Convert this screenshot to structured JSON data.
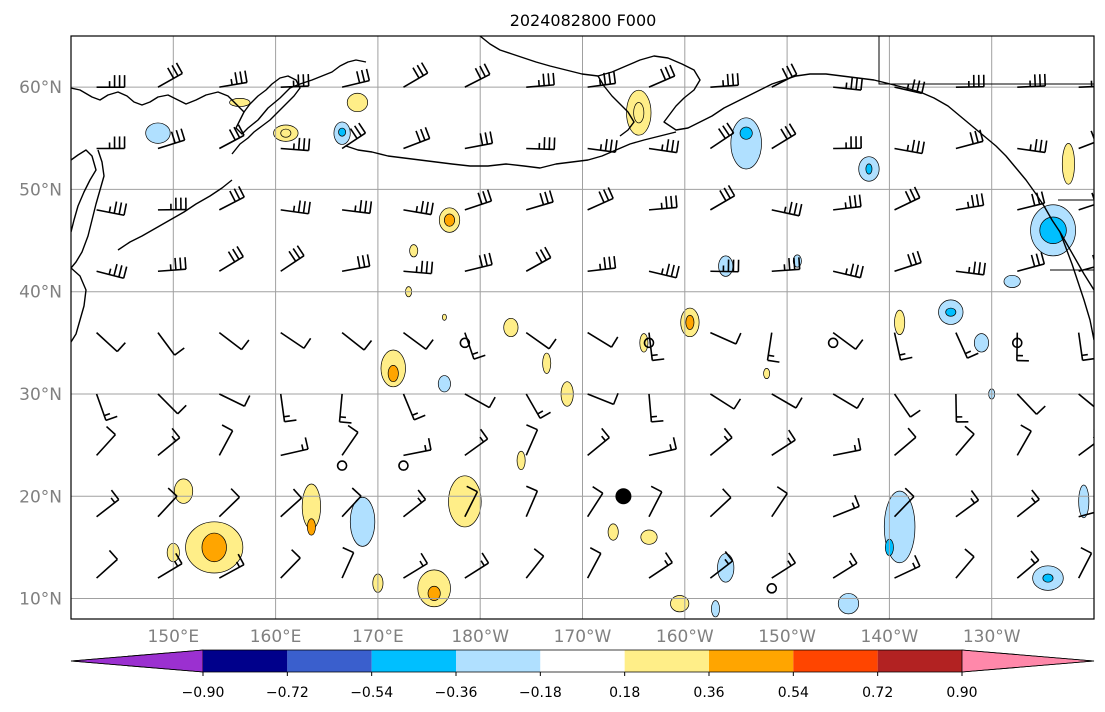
{
  "title": "2024082800 F000",
  "colors": {
    "background": "#ffffff",
    "frame": "#000000",
    "grid": "#a0a0a0",
    "coast": "#000000",
    "barb": "#000000",
    "tick_label": "#808080"
  },
  "map": {
    "projection": "PlateCarree",
    "lon_range_east": [
      140,
      240
    ],
    "lat_range": [
      8,
      65
    ],
    "grid_lines": true,
    "lon_ticks": [
      {
        "lon": 150,
        "label": "150°E"
      },
      {
        "lon": 160,
        "label": "160°E"
      },
      {
        "lon": 170,
        "label": "170°E"
      },
      {
        "lon": 180,
        "label": "180°W"
      },
      {
        "lon": 190,
        "label": "170°W"
      },
      {
        "lon": 200,
        "label": "160°W"
      },
      {
        "lon": 210,
        "label": "150°W"
      },
      {
        "lon": 220,
        "label": "140°W"
      },
      {
        "lon": 230,
        "label": "130°W"
      }
    ],
    "lat_ticks": [
      {
        "lat": 60,
        "label": "60°N"
      },
      {
        "lat": 50,
        "label": "50°N"
      },
      {
        "lat": 40,
        "label": "40°N"
      },
      {
        "lat": 30,
        "label": "30°N"
      },
      {
        "lat": 20,
        "label": "20°N"
      },
      {
        "lat": 10,
        "label": "10°N"
      }
    ]
  },
  "colorbar": {
    "extend": "both",
    "under_color": "#9b30d0",
    "over_color": "#ff88aa",
    "bins": [
      {
        "color": "#00008b"
      },
      {
        "color": "#3a5fcd"
      },
      {
        "color": "#00bfff"
      },
      {
        "color": "#b0e0ff"
      },
      {
        "color": "#ffffff"
      },
      {
        "color": "#ffee88"
      },
      {
        "color": "#ffa500"
      },
      {
        "color": "#ff4500"
      },
      {
        "color": "#b22222"
      }
    ],
    "tick_labels": [
      "−0.90",
      "−0.72",
      "−0.54",
      "−0.36",
      "−0.18",
      "0.18",
      "0.36",
      "0.54",
      "0.72",
      "0.90"
    ]
  },
  "contours": [
    {
      "lon": 148.5,
      "lat": 55.5,
      "rx": 1.2,
      "ry": 1.0,
      "level": -0.36
    },
    {
      "lon": 151.0,
      "lat": 20.5,
      "rx": 0.9,
      "ry": 1.2,
      "level": 0.36
    },
    {
      "lon": 150.0,
      "lat": 14.5,
      "rx": 0.6,
      "ry": 0.9,
      "level": 0.36
    },
    {
      "lon": 154.0,
      "lat": 15.0,
      "rx": 2.8,
      "ry": 2.5,
      "level": 0.36
    },
    {
      "lon": 154.0,
      "lat": 15.0,
      "rx": 1.2,
      "ry": 1.4,
      "level": 0.54
    },
    {
      "lon": 156.5,
      "lat": 58.5,
      "rx": 1.0,
      "ry": 0.4,
      "level": 0.18
    },
    {
      "lon": 161.0,
      "lat": 55.5,
      "rx": 1.2,
      "ry": 0.8,
      "level": 0.18
    },
    {
      "lon": 161.0,
      "lat": 55.5,
      "rx": 0.5,
      "ry": 0.4,
      "level": 0.36
    },
    {
      "lon": 163.5,
      "lat": 19.0,
      "rx": 0.9,
      "ry": 2.2,
      "level": 0.36
    },
    {
      "lon": 163.5,
      "lat": 17.0,
      "rx": 0.4,
      "ry": 0.8,
      "level": 0.54
    },
    {
      "lon": 166.5,
      "lat": 55.5,
      "rx": 0.8,
      "ry": 1.1,
      "level": -0.36
    },
    {
      "lon": 166.5,
      "lat": 55.6,
      "rx": 0.35,
      "ry": 0.4,
      "level": -0.54
    },
    {
      "lon": 168.0,
      "lat": 58.5,
      "rx": 1.0,
      "ry": 0.9,
      "level": 0.36
    },
    {
      "lon": 168.5,
      "lat": 17.5,
      "rx": 1.2,
      "ry": 2.4,
      "level": -0.36
    },
    {
      "lon": 170.0,
      "lat": 11.5,
      "rx": 0.5,
      "ry": 0.9,
      "level": 0.36
    },
    {
      "lon": 171.5,
      "lat": 32.5,
      "rx": 1.2,
      "ry": 1.8,
      "level": 0.36
    },
    {
      "lon": 171.5,
      "lat": 32.0,
      "rx": 0.5,
      "ry": 0.8,
      "level": 0.54
    },
    {
      "lon": 173.0,
      "lat": 40.0,
      "rx": 0.3,
      "ry": 0.5,
      "level": 0.36
    },
    {
      "lon": 173.5,
      "lat": 44.0,
      "rx": 0.4,
      "ry": 0.6,
      "level": 0.36
    },
    {
      "lon": 175.5,
      "lat": 11.0,
      "rx": 1.6,
      "ry": 1.8,
      "level": 0.36
    },
    {
      "lon": 175.5,
      "lat": 10.5,
      "rx": 0.6,
      "ry": 0.7,
      "level": 0.54
    },
    {
      "lon": 176.5,
      "lat": 31.0,
      "rx": 0.6,
      "ry": 0.8,
      "level": -0.36
    },
    {
      "lon": 177.0,
      "lat": 47.0,
      "rx": 1.0,
      "ry": 1.2,
      "level": 0.36
    },
    {
      "lon": 177.0,
      "lat": 47.0,
      "rx": 0.5,
      "ry": 0.6,
      "level": 0.54
    },
    {
      "lon": 178.5,
      "lat": 19.5,
      "rx": 1.6,
      "ry": 2.5,
      "level": 0.36
    },
    {
      "lon": 183.0,
      "lat": 36.5,
      "rx": 0.7,
      "ry": 0.9,
      "level": 0.36
    },
    {
      "lon": 186.5,
      "lat": 33.0,
      "rx": 0.4,
      "ry": 1.0,
      "level": 0.36
    },
    {
      "lon": 188.5,
      "lat": 30.0,
      "rx": 0.6,
      "ry": 1.2,
      "level": 0.36
    },
    {
      "lon": 184.0,
      "lat": 23.5,
      "rx": 0.4,
      "ry": 0.9,
      "level": 0.36
    },
    {
      "lon": 195.5,
      "lat": 57.5,
      "rx": 1.2,
      "ry": 2.2,
      "level": 0.36
    },
    {
      "lon": 195.5,
      "lat": 57.5,
      "rx": 0.5,
      "ry": 1.0,
      "level": 0.18
    },
    {
      "lon": 196.0,
      "lat": 35.0,
      "rx": 0.4,
      "ry": 0.9,
      "level": 0.36
    },
    {
      "lon": 193.0,
      "lat": 16.5,
      "rx": 0.5,
      "ry": 0.8,
      "level": 0.36
    },
    {
      "lon": 196.5,
      "lat": 16.0,
      "rx": 0.8,
      "ry": 0.7,
      "level": 0.36
    },
    {
      "lon": 200.5,
      "lat": 37.0,
      "rx": 0.9,
      "ry": 1.4,
      "level": 0.36
    },
    {
      "lon": 200.5,
      "lat": 37.0,
      "rx": 0.4,
      "ry": 0.7,
      "level": 0.54
    },
    {
      "lon": 199.5,
      "lat": 9.5,
      "rx": 0.9,
      "ry": 0.8,
      "level": 0.36
    },
    {
      "lon": 206.0,
      "lat": 54.5,
      "rx": 1.5,
      "ry": 2.5,
      "level": -0.36
    },
    {
      "lon": 206.0,
      "lat": 55.5,
      "rx": 0.6,
      "ry": 0.6,
      "level": -0.54
    },
    {
      "lon": 204.0,
      "lat": 42.5,
      "rx": 0.7,
      "ry": 1.0,
      "level": -0.36
    },
    {
      "lon": 204.0,
      "lat": 13.0,
      "rx": 0.8,
      "ry": 1.4,
      "level": -0.36
    },
    {
      "lon": 203.0,
      "lat": 9.0,
      "rx": 0.4,
      "ry": 0.8,
      "level": -0.36
    },
    {
      "lon": 208.0,
      "lat": 32.0,
      "rx": 0.3,
      "ry": 0.5,
      "level": 0.36
    },
    {
      "lon": 211.0,
      "lat": 43.0,
      "rx": 0.4,
      "ry": 0.6,
      "level": -0.36
    },
    {
      "lon": 218.0,
      "lat": 52.0,
      "rx": 1.0,
      "ry": 1.2,
      "level": -0.36
    },
    {
      "lon": 218.0,
      "lat": 52.0,
      "rx": 0.3,
      "ry": 0.5,
      "level": -0.54
    },
    {
      "lon": 221.0,
      "lat": 37.0,
      "rx": 0.5,
      "ry": 1.2,
      "level": 0.36
    },
    {
      "lon": 216.0,
      "lat": 9.5,
      "rx": 1.0,
      "ry": 1.0,
      "level": -0.36
    },
    {
      "lon": 221.0,
      "lat": 17.0,
      "rx": 1.5,
      "ry": 3.5,
      "level": -0.36
    },
    {
      "lon": 220.0,
      "lat": 15.0,
      "rx": 0.4,
      "ry": 0.8,
      "level": -0.54
    },
    {
      "lon": 226.0,
      "lat": 38.0,
      "rx": 1.2,
      "ry": 1.2,
      "level": -0.36
    },
    {
      "lon": 226.0,
      "lat": 38.0,
      "rx": 0.5,
      "ry": 0.4,
      "level": -0.54
    },
    {
      "lon": 229.0,
      "lat": 35.0,
      "rx": 0.7,
      "ry": 0.9,
      "level": -0.36
    },
    {
      "lon": 232.0,
      "lat": 41.0,
      "rx": 0.8,
      "ry": 0.6,
      "level": -0.36
    },
    {
      "lon": 236.0,
      "lat": 46.0,
      "rx": 2.2,
      "ry": 2.5,
      "level": -0.36
    },
    {
      "lon": 236.0,
      "lat": 46.0,
      "rx": 1.3,
      "ry": 1.3,
      "level": -0.54
    },
    {
      "lon": 237.5,
      "lat": 52.5,
      "rx": 0.6,
      "ry": 2.0,
      "level": 0.36
    },
    {
      "lon": 235.5,
      "lat": 12.0,
      "rx": 1.5,
      "ry": 1.2,
      "level": -0.36
    },
    {
      "lon": 235.5,
      "lat": 12.0,
      "rx": 0.5,
      "ry": 0.4,
      "level": -0.54
    },
    {
      "lon": 239.0,
      "lat": 19.5,
      "rx": 0.5,
      "ry": 1.6,
      "level": -0.36
    },
    {
      "lon": 230.0,
      "lat": 30.0,
      "rx": 0.3,
      "ry": 0.5,
      "level": -0.36
    },
    {
      "lon": 176.5,
      "lat": 37.5,
      "rx": 0.2,
      "ry": 0.3,
      "level": 0.36
    }
  ],
  "calm_circles": [
    {
      "lon": 178.5,
      "lat": 35.0
    },
    {
      "lon": 196.5,
      "lat": 35.0
    },
    {
      "lon": 214.5,
      "lat": 35.0
    },
    {
      "lon": 232.5,
      "lat": 35.0
    },
    {
      "lon": 166.5,
      "lat": 23.0
    },
    {
      "lon": 172.5,
      "lat": 23.0
    },
    {
      "lon": 208.5,
      "lat": 11.0
    }
  ],
  "marker": {
    "lon": 194.0,
    "lat": 20.0
  }
}
